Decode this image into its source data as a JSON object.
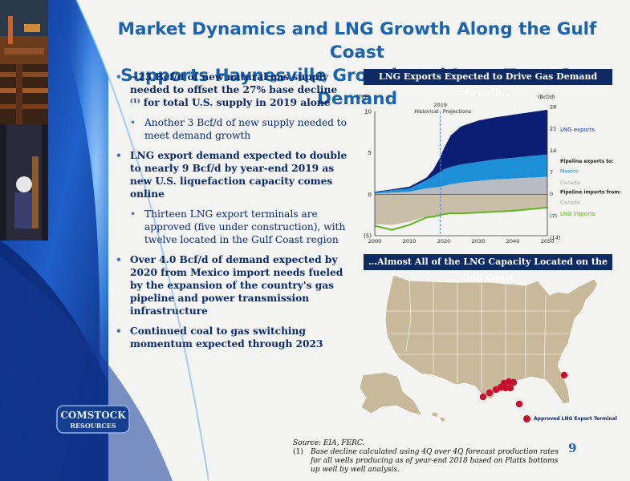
{
  "title": {
    "line1": "Market Dynamics and LNG Growth Along the Gulf Coast",
    "line2": "Supports Haynesville Growth and Long-Term Gas Demand"
  },
  "bullets": [
    {
      "level": 1,
      "text": "~23 Bcf/d of new natural gas supply needed to offset the 27% base decline ⁽¹⁾ for total U.S. supply in 2019 alone"
    },
    {
      "level": 2,
      "text": "Another 3 Bcf/d of new supply needed to meet demand growth"
    },
    {
      "level": 1,
      "text": "LNG export demand expected to double to nearly 9 Bcf/d by year-end 2019 as new U.S. liquefaction capacity comes online"
    },
    {
      "level": 2,
      "text": "Thirteen LNG export terminals are approved (five under construction), with twelve located in the Gulf Coast region"
    },
    {
      "level": 1,
      "text": "Over 4.0 Bcf/d of demand expected by 2020 from Mexico import needs fueled by the expansion of the country's gas pipeline and power transmission infrastructure"
    },
    {
      "level": 1,
      "text": "Continued coal to gas switching momentum expected through 2023"
    }
  ],
  "chart_banner": "LNG Exports Expected to Drive Gas Demand Growth…",
  "map_banner": "…Almost All of the LNG Capacity Located on the Gulf Coast",
  "map_legend": "Approved LNG Export Terminal",
  "logo": {
    "line1": "COMSTOCK",
    "line2": "RESOURCES"
  },
  "source": {
    "line1": "Source: EIA, FERC.",
    "note_num": "(1)",
    "note_text": "Base decline calculated using 4Q over 4Q forecast production rates for all wells producing as of year-end 2018 based on Platts bottoms up well by well analysis."
  },
  "page_number": "9",
  "colors": {
    "title": "#1b64ad",
    "banner": "#0e2a63",
    "lng": "#0a1f73",
    "mexico": "#1d8fd6",
    "canada": "#b8bcc2",
    "imports_fill": "#c9bfa8",
    "lng_imports_line": "#5fb31c",
    "terminal": "#c8102e",
    "land": "#c9b99b"
  },
  "chart_data": {
    "type": "area",
    "left_axis_label": "(TCF)",
    "right_axis_label": "(Bcf/d)",
    "left_ticks": [
      "10",
      "5",
      "0",
      "(5)"
    ],
    "right_ticks": [
      "28",
      "21",
      "14",
      "7",
      "0",
      "(7)",
      "(14)"
    ],
    "x_ticks": [
      "2000",
      "2010",
      "2020",
      "2030",
      "2040",
      "2050"
    ],
    "ylim": [
      -5,
      10
    ],
    "divider_year": 2019,
    "divider_label": "2019",
    "historical_label": "Historical",
    "projections_label": "Projections",
    "x": [
      2000,
      2005,
      2010,
      2015,
      2017,
      2019,
      2020,
      2022,
      2025,
      2030,
      2035,
      2040,
      2045,
      2050
    ],
    "series": [
      {
        "name": "LNG exports",
        "key": "lng",
        "values": [
          0.1,
          0.1,
          0.2,
          0.3,
          0.8,
          1.8,
          2.5,
          3.8,
          4.6,
          5.0,
          5.1,
          5.2,
          5.3,
          5.4
        ]
      },
      {
        "name": "Mexico",
        "key": "mexico",
        "values": [
          0.1,
          0.3,
          0.4,
          1.0,
          1.4,
          1.8,
          2.0,
          2.1,
          2.2,
          2.3,
          2.4,
          2.5,
          2.6,
          2.7
        ]
      },
      {
        "name": "Canada",
        "key": "canada",
        "values": [
          0.1,
          0.2,
          0.3,
          0.7,
          0.8,
          0.9,
          1.0,
          1.2,
          1.4,
          1.6,
          1.8,
          1.9,
          2.0,
          2.1
        ]
      },
      {
        "name": "Canada",
        "key": "imports",
        "values": [
          -3.6,
          -3.7,
          -3.3,
          -2.7,
          -2.6,
          -2.5,
          -2.4,
          -2.3,
          -2.3,
          -2.2,
          -2.1,
          -2.0,
          -1.8,
          -1.6
        ]
      },
      {
        "name": "LNG imports",
        "key": "lng_imports",
        "values": [
          -0.2,
          -0.6,
          -0.4,
          -0.1,
          -0.1,
          0,
          0,
          0,
          0,
          0,
          0,
          0,
          0,
          0
        ]
      }
    ],
    "legend": {
      "lng_exports": "LNG exports",
      "pipeline_exports": "Pipeline exports to:",
      "mexico": "Mexico",
      "canada_exp": "Canada",
      "pipeline_imports": "Pipeline imports from:",
      "canada_imp": "Canada",
      "lng_imports": "LNG imports"
    }
  }
}
